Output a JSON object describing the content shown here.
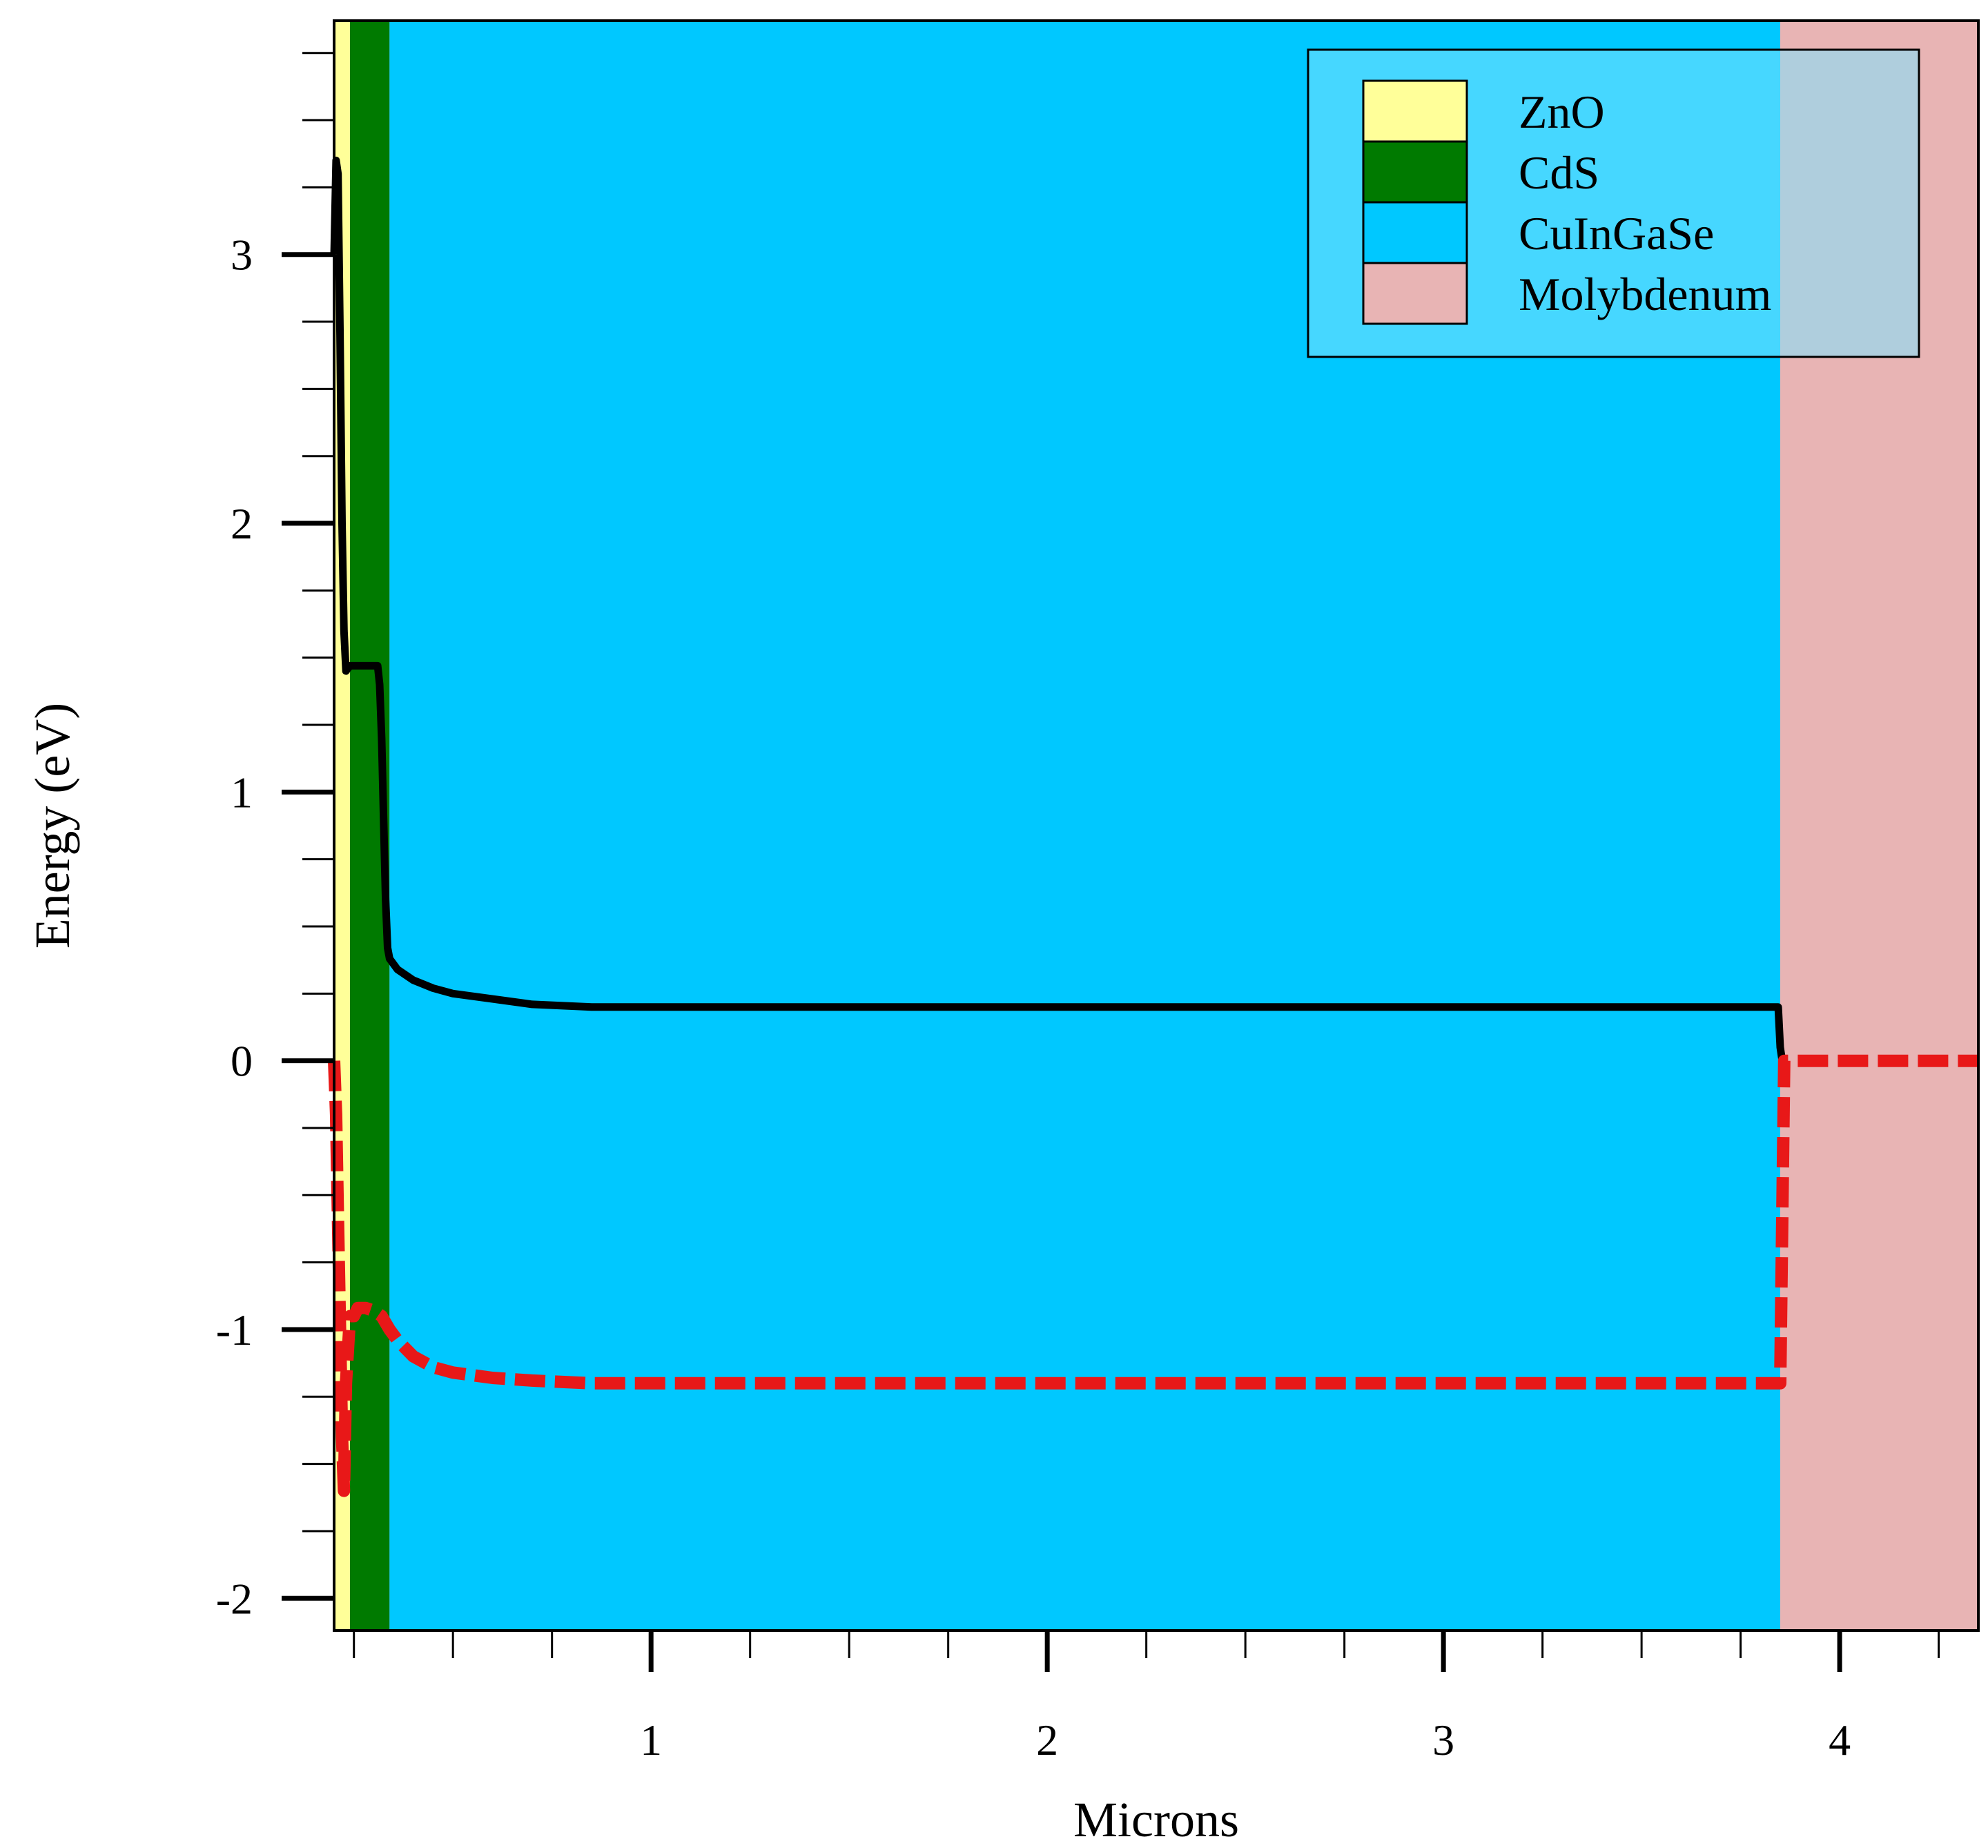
{
  "chart_data": {
    "type": "line",
    "xlabel": "Microns",
    "ylabel": "Energy (eV)",
    "xlim": [
      0.2,
      4.35
    ],
    "ylim": [
      -2.12,
      3.87
    ],
    "xticks": [
      1,
      2,
      3,
      4
    ],
    "yticks": [
      -2,
      -1,
      0,
      1,
      2,
      3
    ],
    "x_minor_step": 0.25,
    "y_minor_step": 0.25,
    "regions": [
      {
        "name": "ZnO",
        "x0": 0.2,
        "x1": 0.24,
        "color": "#ffff99"
      },
      {
        "name": "CdS",
        "x0": 0.24,
        "x1": 0.34,
        "color": "#007a00"
      },
      {
        "name": "CuInGaSe",
        "x0": 0.34,
        "x1": 3.85,
        "color": "#00c8ff"
      },
      {
        "name": "Molybdenum",
        "x0": 3.85,
        "x1": 4.35,
        "color": "#e8b4b4"
      }
    ],
    "legend": {
      "position": "top-right",
      "entries": [
        "ZnO",
        "CdS",
        "CuInGaSe",
        "Molybdenum"
      ],
      "swatch_colors": [
        "#ffff99",
        "#007a00",
        "#00c8ff",
        "#e8b4b4"
      ]
    },
    "series": [
      {
        "color": "#000000",
        "style": "solid",
        "x": [
          0.2,
          0.205,
          0.21,
          0.215,
          0.22,
          0.225,
          0.23,
          0.24,
          0.28,
          0.31,
          0.315,
          0.32,
          0.325,
          0.33,
          0.335,
          0.34,
          0.36,
          0.4,
          0.45,
          0.5,
          0.6,
          0.7,
          0.85,
          1.0,
          2.0,
          3.0,
          3.84,
          3.845,
          3.85,
          3.855
        ],
        "y": [
          3.0,
          3.35,
          3.3,
          2.7,
          2.0,
          1.6,
          1.45,
          1.47,
          1.47,
          1.47,
          1.4,
          1.2,
          0.9,
          0.6,
          0.42,
          0.38,
          0.34,
          0.3,
          0.27,
          0.25,
          0.23,
          0.21,
          0.2,
          0.2,
          0.2,
          0.2,
          0.2,
          0.2,
          0.05,
          0.0
        ]
      },
      {
        "color": "#e81818",
        "style": "dashed",
        "x": [
          0.2,
          0.205,
          0.21,
          0.215,
          0.22,
          0.225,
          0.23,
          0.24,
          0.25,
          0.26,
          0.28,
          0.3,
          0.32,
          0.34,
          0.36,
          0.4,
          0.45,
          0.5,
          0.6,
          0.7,
          0.85,
          1.0,
          2.0,
          3.0,
          3.85,
          3.855,
          3.86,
          4.0,
          4.35
        ],
        "y": [
          0.0,
          -0.2,
          -0.6,
          -1.0,
          -1.4,
          -1.6,
          -1.2,
          -0.95,
          -0.95,
          -0.92,
          -0.92,
          -0.93,
          -0.95,
          -1.0,
          -1.04,
          -1.1,
          -1.14,
          -1.16,
          -1.18,
          -1.19,
          -1.2,
          -1.2,
          -1.2,
          -1.2,
          -1.2,
          -0.6,
          0.0,
          0.0,
          0.0
        ]
      }
    ]
  }
}
